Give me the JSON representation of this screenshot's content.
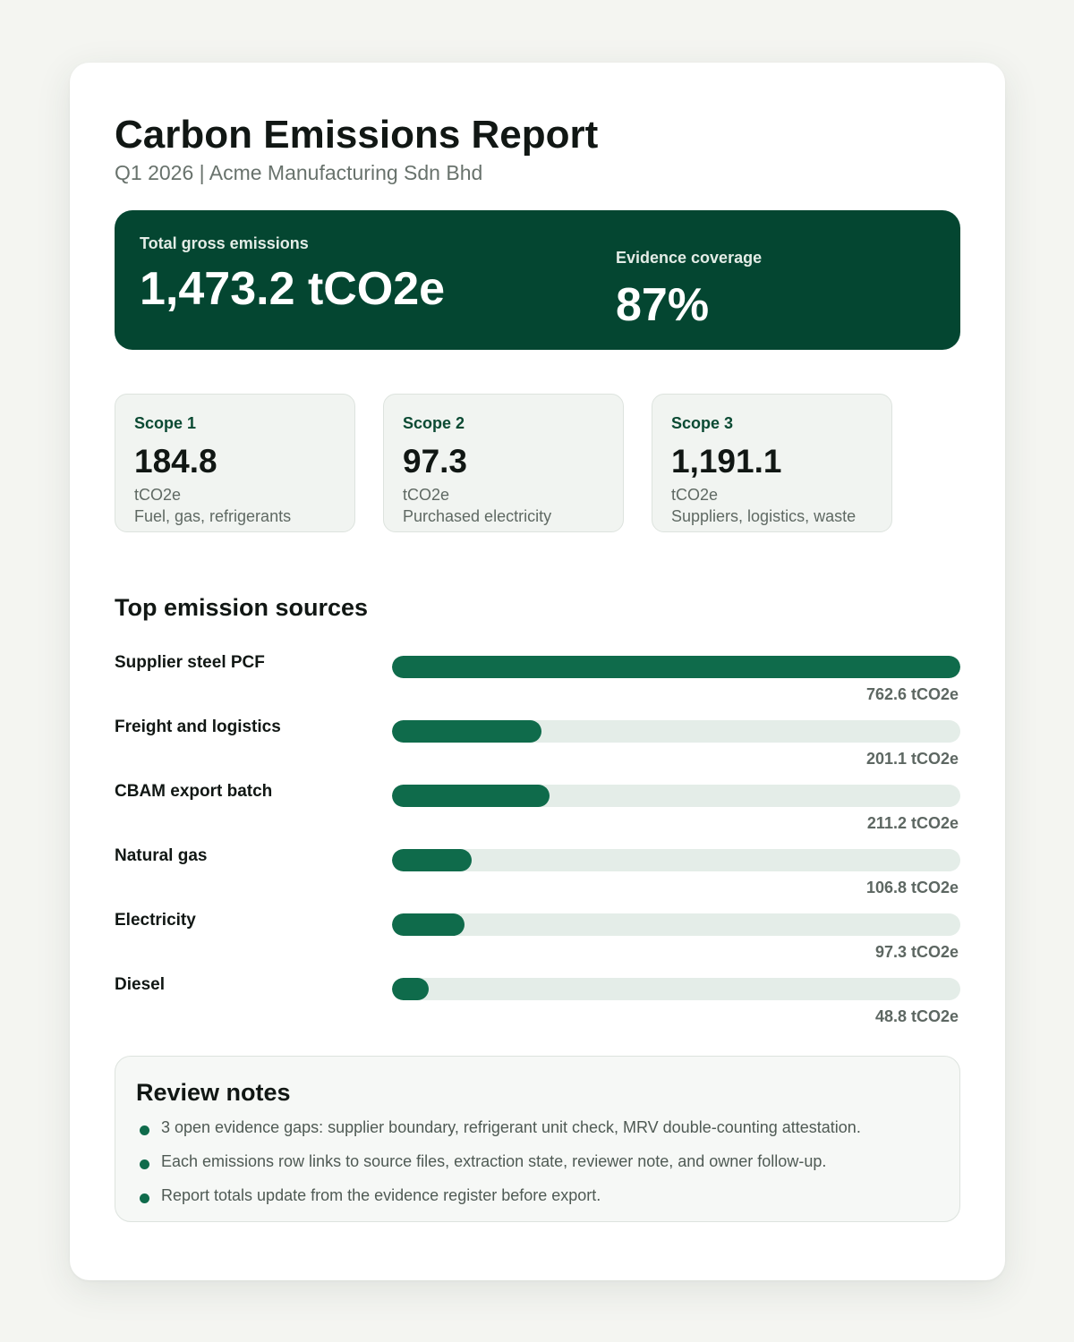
{
  "header": {
    "title": "Carbon Emissions Report",
    "subtitle": "Q1 2026 | Acme Manufacturing Sdn Bhd"
  },
  "summary": {
    "total_label": "Total gross emissions",
    "total_value": "1,473.2 tCO2e",
    "coverage_label": "Evidence coverage",
    "coverage_value": "87%"
  },
  "scopes": [
    {
      "label": "Scope 1",
      "value": "184.8",
      "unit": "tCO2e",
      "description": "Fuel, gas, refrigerants"
    },
    {
      "label": "Scope 2",
      "value": "97.3",
      "unit": "tCO2e",
      "description": "Purchased electricity"
    },
    {
      "label": "Scope 3",
      "value": "1,191.1",
      "unit": "tCO2e",
      "description": "Suppliers, logistics, waste"
    }
  ],
  "sources": {
    "title": "Top emission sources",
    "items": [
      {
        "label": "Supplier steel PCF",
        "value_text": "762.6 tCO2e",
        "amount": 762.6
      },
      {
        "label": "Freight and logistics",
        "value_text": "201.1 tCO2e",
        "amount": 201.1
      },
      {
        "label": "CBAM export batch",
        "value_text": "211.2 tCO2e",
        "amount": 211.2
      },
      {
        "label": "Natural gas",
        "value_text": "106.8 tCO2e",
        "amount": 106.8
      },
      {
        "label": "Electricity",
        "value_text": "97.3 tCO2e",
        "amount": 97.3
      },
      {
        "label": "Diesel",
        "value_text": "48.8 tCO2e",
        "amount": 48.8
      }
    ]
  },
  "notes": {
    "title": "Review notes",
    "items": [
      "3 open evidence gaps: supplier boundary, refrigerant unit check, MRV double-counting attestation.",
      "Each emissions row links to source files, extraction state, reviewer note, and owner follow-up.",
      "Report totals update from the evidence register before export."
    ]
  },
  "colors": {
    "accent": "#0f6b4b",
    "hero_bg": "#044631",
    "bar_track": "#e4ede8",
    "page_bg": "#f4f5f1"
  }
}
